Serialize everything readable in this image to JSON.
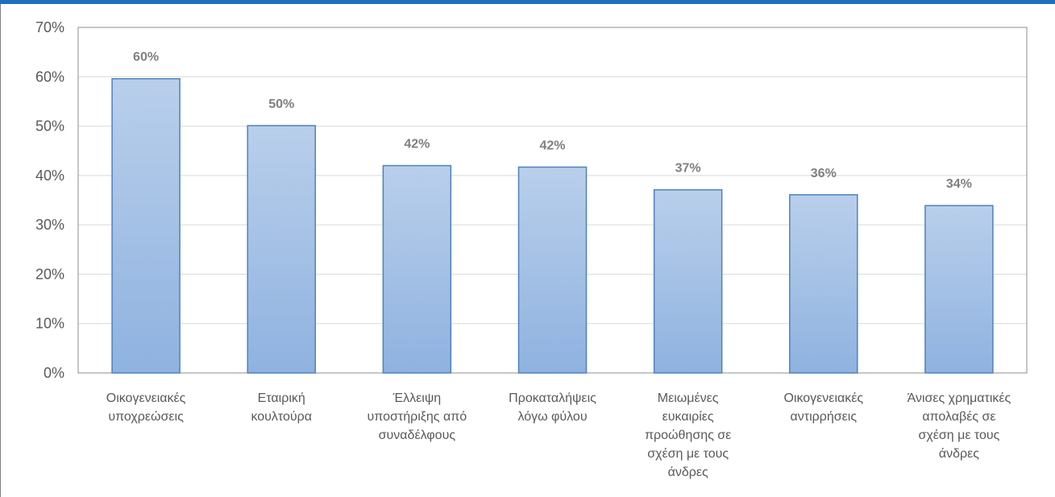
{
  "chart_data": {
    "type": "bar",
    "title": "",
    "xlabel": "",
    "ylabel": "",
    "categories": [
      [
        "Οικογενειακές",
        "υποχρεώσεις"
      ],
      [
        "Εταιρική",
        "κουλτούρα"
      ],
      [
        "Έλλειψη",
        "υποστήριξης από",
        "συναδέλφους"
      ],
      [
        "Προκαταλήψεις",
        "λόγω φύλου"
      ],
      [
        "Μειωμένες",
        "ευκαιρίες",
        "προώθησης σε",
        "σχέση με τους",
        "άνδρες"
      ],
      [
        "Οικογενειακές",
        "αντιρρήσεις"
      ],
      [
        "Άνισες χρηματικές",
        "απολαβές σε",
        "σχέση με τους",
        "άνδρες"
      ]
    ],
    "values": [
      59.6,
      50.1,
      42.0,
      41.7,
      37.1,
      36.1,
      33.9
    ],
    "data_labels": [
      "60%",
      "50%",
      "42%",
      "42%",
      "37%",
      "36%",
      "34%"
    ],
    "y_ticks": [
      "0%",
      "10%",
      "20%",
      "30%",
      "40%",
      "50%",
      "60%",
      "70%"
    ],
    "ylim": [
      0,
      70
    ],
    "grid": true,
    "legend": "none",
    "colors": {
      "bar_top": "#b9cfeb",
      "bar_bottom": "#8fb2e0",
      "bar_stroke": "#4f81bd",
      "gridline": "#d9d9d9",
      "plot_border": "#8c8c8c",
      "header_strip": "#1f6fbf"
    }
  }
}
